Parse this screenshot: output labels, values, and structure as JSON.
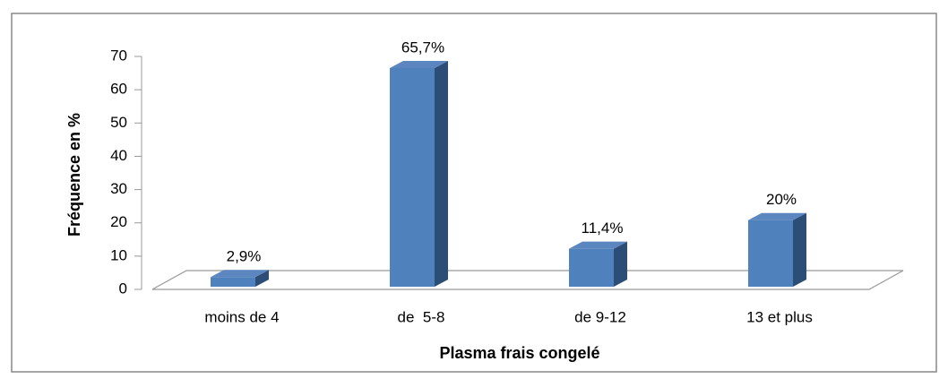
{
  "chart_data": {
    "type": "bar3d",
    "x_label": "Plasma frais congelé",
    "y_label": "Fréquence en %",
    "categories": [
      "moins de 4",
      "de  5-8",
      "de 9-12",
      "13 et plus"
    ],
    "values": [
      2.9,
      65.7,
      11.4,
      20
    ],
    "value_labels": [
      "2,9%",
      "65,7%",
      "11,4%",
      "20%"
    ],
    "color": "#4f81bd",
    "ylim": [
      0,
      70
    ],
    "yticks": [
      0,
      10,
      20,
      30,
      40,
      50,
      60,
      70
    ]
  }
}
